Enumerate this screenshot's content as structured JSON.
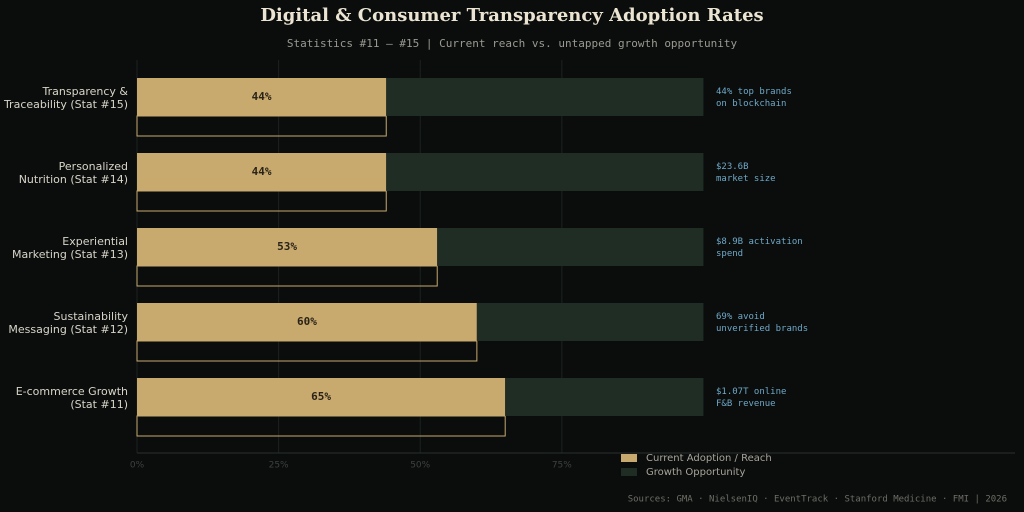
{
  "chart_data": {
    "type": "bar",
    "orientation": "horizontal",
    "stacked": true,
    "title": "Digital & Consumer Transparency Adoption Rates",
    "subtitle": "Statistics #11 – #15  |  Current reach vs. untapped growth opportunity",
    "categories": [
      [
        "Transparency &",
        "Traceability (Stat #15)"
      ],
      [
        "Personalized",
        "Nutrition (Stat #14)"
      ],
      [
        "Experiential",
        "Marketing (Stat #13)"
      ],
      [
        "Sustainability",
        "Messaging (Stat #12)"
      ],
      [
        "E-commerce Growth",
        "(Stat #11)"
      ]
    ],
    "series": [
      {
        "name": "Current Adoption / Reach",
        "color": "#c8a96e",
        "values": [
          44,
          44,
          53,
          60,
          65
        ],
        "value_labels": [
          "44%",
          "44%",
          "53%",
          "60%",
          "65%"
        ]
      },
      {
        "name": "Growth Opportunity",
        "color": "#1f2d24",
        "values": [
          56,
          56,
          47,
          40,
          35
        ]
      }
    ],
    "annotations": [
      [
        "44% top brands",
        "on blockchain"
      ],
      [
        "$23.6B",
        "market size"
      ],
      [
        "$8.9B activation",
        "spend"
      ],
      [
        "69% avoid",
        "unverified brands"
      ],
      [
        "$1.07T online",
        "F&B revenue"
      ]
    ],
    "xlim": [
      0,
      155
    ],
    "xticks": [
      {
        "value": 0,
        "label": "0%"
      },
      {
        "value": 25,
        "label": "25%"
      },
      {
        "value": 50,
        "label": "50%"
      },
      {
        "value": 75,
        "label": "75%"
      }
    ],
    "grid": true,
    "source": "Sources: GMA · NielsenIQ · EventTrack · Stanford Medicine · FMI  |  2026"
  }
}
